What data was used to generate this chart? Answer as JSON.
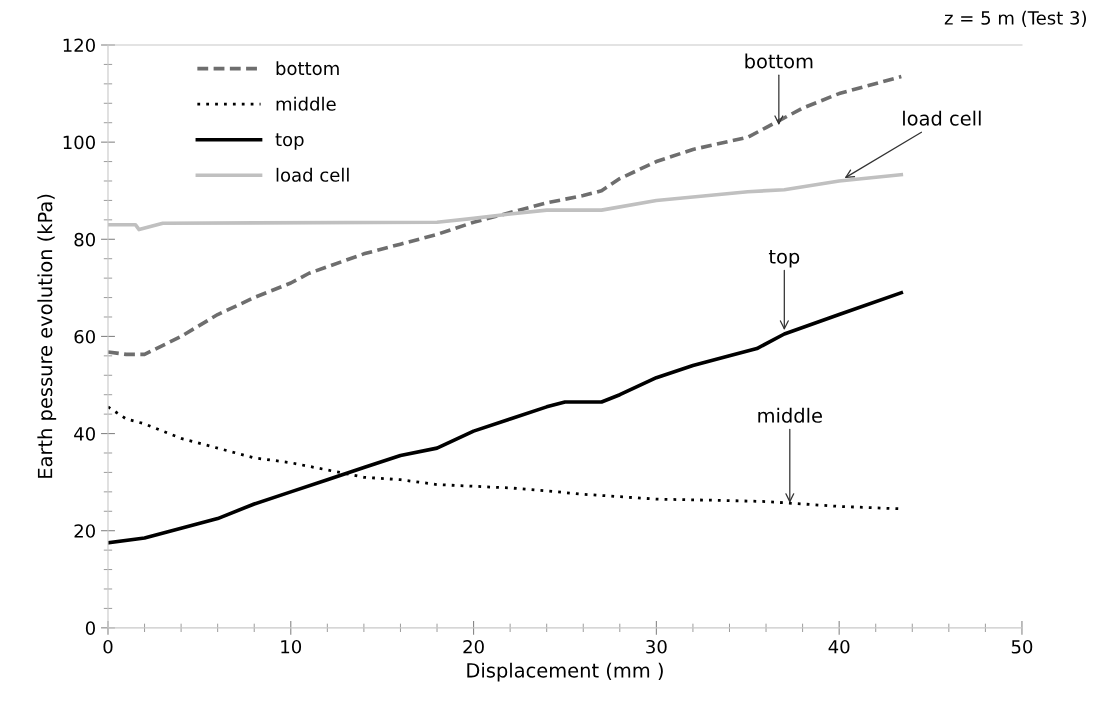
{
  "chart_data": {
    "type": "line",
    "title": "z = 5 m (Test 3)",
    "xlabel": "Displacement (mm )",
    "ylabel": "Earth pessure evolution (kPa)",
    "xlim": [
      0,
      50
    ],
    "xticks": [
      0,
      10,
      20,
      30,
      40,
      50
    ],
    "ylim": [
      0,
      120
    ],
    "yticks": [
      0,
      20,
      40,
      60,
      80,
      100,
      120
    ],
    "grid": false,
    "legend": "top left",
    "series": [
      {
        "name": "bottom",
        "color": "#6e6e6e",
        "line_style": "dashed",
        "x": [
          0,
          1,
          2,
          4,
          6,
          8,
          10,
          11,
          14,
          16,
          18,
          20,
          22,
          24,
          26,
          27,
          28,
          30,
          32,
          35,
          36,
          38,
          40,
          43.4
        ],
        "values": [
          56.8,
          56.3,
          56.3,
          60,
          64.5,
          68,
          71,
          73,
          77,
          79,
          81,
          83.5,
          85.5,
          87.5,
          89,
          90,
          92.5,
          96,
          98.5,
          101,
          103,
          107,
          110,
          113.5
        ]
      },
      {
        "name": "middle",
        "color": "#000000",
        "line_style": "dotted",
        "x": [
          0,
          1,
          2,
          4,
          6,
          8,
          10,
          12,
          14,
          16,
          18,
          22,
          24,
          26,
          28,
          30,
          34,
          36,
          40,
          43.4
        ],
        "values": [
          45.5,
          43,
          42,
          39,
          37,
          35,
          34,
          32.5,
          31,
          30.5,
          29.5,
          28.8,
          28.2,
          27.5,
          27,
          26.5,
          26.2,
          26,
          25,
          24.5
        ]
      },
      {
        "name": "top",
        "color": "#000000",
        "line_style": "solid",
        "x": [
          0,
          2,
          4,
          6,
          8,
          10,
          12,
          14,
          16,
          18,
          20,
          22,
          24,
          25,
          27,
          28,
          30,
          32,
          34,
          35.5,
          37,
          40,
          43.4
        ],
        "values": [
          17.5,
          18.5,
          20.5,
          22.5,
          25.5,
          28,
          30.5,
          33,
          35.5,
          37,
          40.5,
          43,
          45.5,
          46.5,
          46.5,
          48,
          51.5,
          54,
          56,
          57.5,
          60.5,
          64.5,
          69
        ]
      },
      {
        "name": "load cell",
        "color": "#c0c0c0",
        "line_style": "solid",
        "x": [
          0,
          1.5,
          1.7,
          3,
          18,
          20,
          22,
          24,
          27,
          30,
          35,
          37,
          40,
          43.4
        ],
        "values": [
          83,
          83,
          82,
          83.3,
          83.5,
          84.3,
          85.2,
          86,
          86,
          88,
          89.8,
          90.2,
          92,
          93.3
        ]
      }
    ],
    "annotations": [
      {
        "text": "bottom",
        "x": 36.7,
        "y": 103.5
      },
      {
        "text": "load cell",
        "x": 40.3,
        "y": 92.6
      },
      {
        "text": "top",
        "x": 37.0,
        "y": 61.3
      },
      {
        "text": "middle",
        "x": 37.3,
        "y": 25.7
      }
    ]
  }
}
